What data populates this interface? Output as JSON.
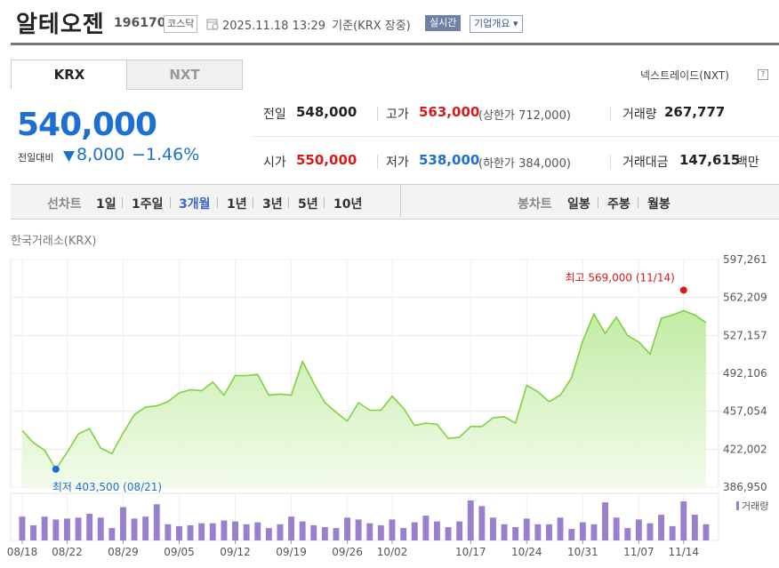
{
  "header": {
    "name": "알테오젠",
    "code": "196170",
    "market": "코스닥",
    "time": "2025.11.18 13:29",
    "basis": "기준(KRX 장중)",
    "live_label": "실시간",
    "overview_label": "기업개요 ▾"
  },
  "tabs": [
    "KRX",
    "NXT"
  ],
  "nextrade_link": "넥스트레이드(NXT)",
  "nextrade_help": "?",
  "price": {
    "current": "540,000",
    "change_label": "전일대비",
    "change_amount": "8,000",
    "change_pct": "−1.46%"
  },
  "stats": {
    "prev_label": "전일",
    "prev": "548,000",
    "high_label": "고가",
    "high": "563,000",
    "upper_limit": "(상한가 712,000)",
    "volume_label": "거래량",
    "volume": "267,777",
    "open_label": "시가",
    "open": "550,000",
    "low_label": "저가",
    "low": "538,000",
    "lower_limit": "(하한가 384,000)",
    "amount_label": "거래대금",
    "amount": "147,615",
    "amount_unit": "백만"
  },
  "period": {
    "line_label": "선차트",
    "line_items": [
      "1일",
      "1주일",
      "3개월",
      "1년",
      "3년",
      "5년",
      "10년"
    ],
    "active": "3개월",
    "candle_label": "봉차트",
    "candle_items": [
      "일봉",
      "주봉",
      "월봉"
    ]
  },
  "exchange_label": "한국거래소(KRX)",
  "colors": {
    "up": "#d71a1a",
    "down": "#1d6fd1",
    "line": "#7ed23f",
    "volume": "#9b7fcf"
  },
  "chart_data": {
    "type": "area",
    "y_ticks": [
      "597,261",
      "562,209",
      "527,157",
      "492,106",
      "457,054",
      "422,002",
      "386,950"
    ],
    "ylim": [
      386950,
      597261
    ],
    "x_ticks": [
      "08/18",
      "08/22",
      "08/29",
      "09/05",
      "09/12",
      "09/19",
      "09/26",
      "10/02",
      "10/17",
      "10/24",
      "10/31",
      "11/07",
      "11/14"
    ],
    "x_tick_index": [
      0,
      4,
      9,
      14,
      19,
      24,
      29,
      33,
      40,
      45,
      50,
      55,
      59
    ],
    "price_series": [
      439000,
      428000,
      421000,
      403500,
      419000,
      436000,
      441000,
      423000,
      418000,
      437000,
      454000,
      461000,
      462000,
      466000,
      474000,
      477000,
      476000,
      484000,
      472000,
      490000,
      490000,
      491000,
      472000,
      473000,
      472000,
      503000,
      483000,
      465000,
      456000,
      448000,
      465000,
      458000,
      458000,
      471000,
      460000,
      444000,
      446000,
      445000,
      432000,
      433000,
      443000,
      443000,
      451000,
      452000,
      446000,
      481000,
      475000,
      466000,
      472000,
      488000,
      522000,
      547000,
      529000,
      544000,
      527000,
      521000,
      510000,
      543000,
      546000,
      550000,
      546000,
      539000
    ],
    "volume_series": [
      25,
      16,
      25,
      22,
      23,
      24,
      28,
      24,
      13,
      35,
      23,
      25,
      38,
      17,
      15,
      16,
      18,
      18,
      21,
      20,
      17,
      19,
      13,
      17,
      25,
      20,
      16,
      14,
      13,
      24,
      22,
      18,
      16,
      22,
      13,
      19,
      26,
      20,
      14,
      20,
      42,
      36,
      24,
      17,
      14,
      23,
      17,
      17,
      24,
      12,
      19,
      17,
      40,
      24,
      13,
      22,
      18,
      27,
      15,
      41,
      27,
      17
    ],
    "high_annotation": "최고 569,000 (11/14)",
    "low_annotation": "최저 403,500 (08/21)",
    "volume_legend": "거래량"
  }
}
